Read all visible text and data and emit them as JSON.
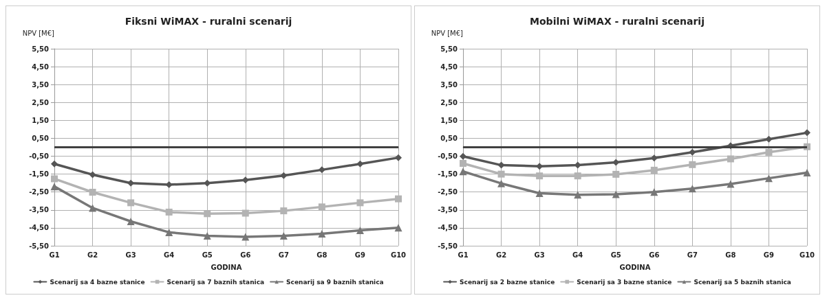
{
  "chart_data": [
    {
      "type": "line",
      "title": "Fiksni WiMAX - ruralni scenarij",
      "ylabel": "NPV [M€]",
      "xlabel": "GODINA",
      "categories": [
        "G1",
        "G2",
        "G3",
        "G4",
        "G5",
        "G6",
        "G7",
        "G8",
        "G9",
        "G10"
      ],
      "series": [
        {
          "name": "Scenarij sa 4 bazne stanice",
          "color": "#555555",
          "marker": "diamond",
          "values": [
            -0.93,
            -1.53,
            -2.0,
            -2.09,
            -2.0,
            -1.83,
            -1.58,
            -1.26,
            -0.93,
            -0.58
          ]
        },
        {
          "name": "Scenarij sa 7 baznih stanica",
          "color": "#b3b3b3",
          "marker": "square",
          "values": [
            -1.76,
            -2.51,
            -3.1,
            -3.62,
            -3.71,
            -3.68,
            -3.55,
            -3.33,
            -3.1,
            -2.88
          ]
        },
        {
          "name": "Scenarij sa 9 baznih stanica",
          "color": "#777777",
          "marker": "triangle",
          "values": [
            -2.19,
            -3.39,
            -4.14,
            -4.75,
            -4.94,
            -5.0,
            -4.94,
            -4.83,
            -4.64,
            -4.49
          ]
        }
      ],
      "ylim": [
        -5.5,
        5.5
      ],
      "yticks": [
        {
          "value": 5.5,
          "label": "5,50"
        },
        {
          "value": 4.5,
          "label": "4,50"
        },
        {
          "value": 3.5,
          "label": "3,50"
        },
        {
          "value": 2.5,
          "label": "2,50"
        },
        {
          "value": 1.5,
          "label": "1,50"
        },
        {
          "value": 0.5,
          "label": "0,50"
        },
        {
          "value": -0.5,
          "label": "-0,50"
        },
        {
          "value": -1.5,
          "label": "-1,50"
        },
        {
          "value": -2.5,
          "label": "-2,50"
        },
        {
          "value": -3.5,
          "label": "-3,50"
        },
        {
          "value": -4.5,
          "label": "-4,50"
        },
        {
          "value": -5.5,
          "label": "-5,50"
        }
      ],
      "ref_lines": [
        {
          "axis": "y",
          "value": 0,
          "color": "#404040"
        }
      ],
      "grid": true,
      "legend": "bottom",
      "line_style": "solid"
    },
    {
      "type": "line",
      "title": "Mobilni WiMAX - ruralni scenarij",
      "ylabel": "NPV [M€]",
      "xlabel": "GODINA",
      "categories": [
        "G1",
        "G2",
        "G3",
        "G4",
        "G5",
        "G6",
        "G7",
        "G8",
        "G9",
        "G10"
      ],
      "series": [
        {
          "name": "Scenarij sa 2 bazne stanice",
          "color": "#555555",
          "marker": "diamond",
          "values": [
            -0.51,
            -1.0,
            -1.06,
            -1.0,
            -0.84,
            -0.6,
            -0.28,
            0.09,
            0.45,
            0.81
          ]
        },
        {
          "name": "Scenarij sa 3 bazne stanice",
          "color": "#b3b3b3",
          "marker": "square",
          "values": [
            -0.9,
            -1.5,
            -1.6,
            -1.6,
            -1.51,
            -1.28,
            -0.97,
            -0.65,
            -0.28,
            0.03
          ]
        },
        {
          "name": "Scenarij sa 5 baznih stanica",
          "color": "#777777",
          "marker": "triangle",
          "values": [
            -1.35,
            -2.02,
            -2.57,
            -2.65,
            -2.63,
            -2.5,
            -2.31,
            -2.05,
            -1.73,
            -1.42
          ]
        }
      ],
      "ylim": [
        -5.5,
        5.5
      ],
      "yticks": [
        {
          "value": 5.5,
          "label": "5,50"
        },
        {
          "value": 4.5,
          "label": "4,50"
        },
        {
          "value": 3.5,
          "label": "3,50"
        },
        {
          "value": 2.5,
          "label": "2,50"
        },
        {
          "value": 1.5,
          "label": "1,50"
        },
        {
          "value": 0.5,
          "label": "0,50"
        },
        {
          "value": -0.5,
          "label": "-0,50"
        },
        {
          "value": -1.5,
          "label": "-1,50"
        },
        {
          "value": -2.5,
          "label": "-2,50"
        },
        {
          "value": -3.5,
          "label": "-3,50"
        },
        {
          "value": -4.5,
          "label": "-4,50"
        },
        {
          "value": -5.5,
          "label": "-5,50"
        }
      ],
      "ref_lines": [
        {
          "axis": "y",
          "value": 0,
          "color": "#404040"
        }
      ],
      "grid": true,
      "legend": "bottom",
      "line_style": "solid"
    }
  ]
}
